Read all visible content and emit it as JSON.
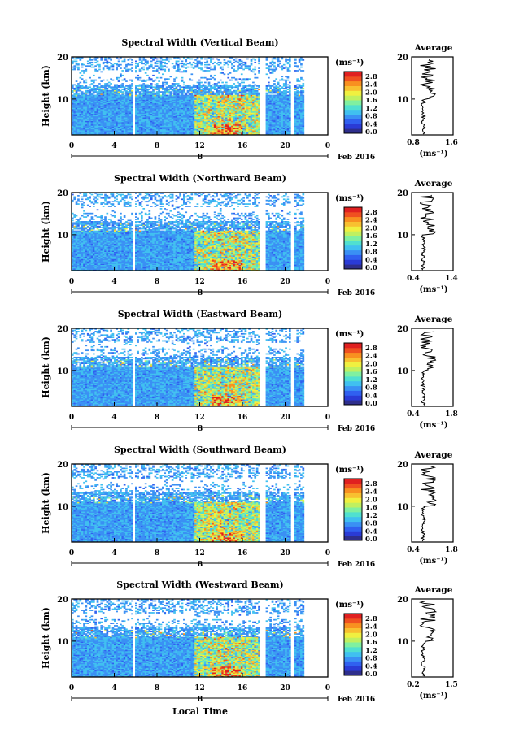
{
  "figure": {
    "xlabel": "Local Time",
    "date_label": "Feb 2016",
    "day_label": "8"
  },
  "colors": {
    "scale": [
      "#2e2e8c",
      "#2a3bd6",
      "#3060f0",
      "#3a90f4",
      "#40c0f0",
      "#50e0d0",
      "#80f0a0",
      "#c0f060",
      "#f0f040",
      "#f8c030",
      "#f89020",
      "#f05020",
      "#e02020"
    ],
    "profile_line": "#000000"
  },
  "chart_data": [
    {
      "type": "heatmap",
      "title": "Spectral Width (Vertical Beam)",
      "ylabel": "Height (km)",
      "colorbar": {
        "unit": "(ms⁻¹)",
        "ticks": [
          "2.8",
          "2.4",
          "2.0",
          "1.6",
          "1.2",
          "0.8",
          "0.4",
          "0.0"
        ],
        "range": [
          0,
          2.8
        ]
      },
      "x": {
        "range": [
          0,
          24
        ],
        "ticks": [
          "0",
          "4",
          "8",
          "12",
          "16",
          "20",
          "0"
        ]
      },
      "y": {
        "range": [
          1.5,
          20
        ],
        "ticks": [
          "20",
          "10"
        ]
      },
      "profile": {
        "title": "Average",
        "xunit": "(ms⁻¹)",
        "xlim": [
          0.8,
          1.6
        ],
        "xticks": [
          "0.8",
          "1.6"
        ],
        "yticks": [
          "20",
          "10"
        ]
      }
    },
    {
      "type": "heatmap",
      "title": "Spectral Width (Northward Beam)",
      "ylabel": "Height (km)",
      "colorbar": {
        "unit": "(ms⁻¹)",
        "ticks": [
          "2.8",
          "2.4",
          "2.0",
          "1.6",
          "1.2",
          "0.8",
          "0.4",
          "0.0"
        ],
        "range": [
          0,
          2.8
        ]
      },
      "x": {
        "range": [
          0,
          24
        ],
        "ticks": [
          "0",
          "4",
          "8",
          "12",
          "16",
          "20",
          "0"
        ]
      },
      "y": {
        "range": [
          1.5,
          20
        ],
        "ticks": [
          "20",
          "10"
        ]
      },
      "profile": {
        "title": "Average",
        "xunit": "(ms⁻¹)",
        "xlim": [
          0.4,
          1.4
        ],
        "xticks": [
          "0.4",
          "1.4"
        ],
        "yticks": [
          "20",
          "10"
        ]
      }
    },
    {
      "type": "heatmap",
      "title": "Spectral Width (Eastward Beam)",
      "ylabel": "Height (km)",
      "colorbar": {
        "unit": "(ms⁻¹)",
        "ticks": [
          "2.8",
          "2.4",
          "2.0",
          "1.6",
          "1.2",
          "0.8",
          "0.4",
          "0.0"
        ],
        "range": [
          0,
          2.8
        ]
      },
      "x": {
        "range": [
          0,
          24
        ],
        "ticks": [
          "0",
          "4",
          "8",
          "12",
          "16",
          "20",
          "0"
        ]
      },
      "y": {
        "range": [
          1.5,
          20
        ],
        "ticks": [
          "20",
          "10"
        ]
      },
      "profile": {
        "title": "Average",
        "xunit": "(ms⁻¹)",
        "xlim": [
          0.4,
          1.8
        ],
        "xticks": [
          "0.4",
          "1.8"
        ],
        "yticks": [
          "20",
          "10"
        ]
      }
    },
    {
      "type": "heatmap",
      "title": "Spectral Width (Southward Beam)",
      "ylabel": "Height (km)",
      "colorbar": {
        "unit": "(ms⁻¹)",
        "ticks": [
          "2.8",
          "2.4",
          "2.0",
          "1.6",
          "1.2",
          "0.8",
          "0.4",
          "0.0"
        ],
        "range": [
          0,
          2.8
        ]
      },
      "x": {
        "range": [
          0,
          24
        ],
        "ticks": [
          "0",
          "4",
          "8",
          "12",
          "16",
          "20",
          "0"
        ]
      },
      "y": {
        "range": [
          1.5,
          20
        ],
        "ticks": [
          "20",
          "10"
        ]
      },
      "profile": {
        "title": "Average",
        "xunit": "(ms⁻¹)",
        "xlim": [
          0.4,
          1.8
        ],
        "xticks": [
          "0.4",
          "1.8"
        ],
        "yticks": [
          "20",
          "10"
        ]
      }
    },
    {
      "type": "heatmap",
      "title": "Spectral Width (Westward Beam)",
      "ylabel": "Height (km)",
      "colorbar": {
        "unit": "(ms⁻¹)",
        "ticks": [
          "2.8",
          "2.4",
          "2.0",
          "1.6",
          "1.2",
          "0.8",
          "0.4",
          "0.0"
        ],
        "range": [
          0,
          2.8
        ]
      },
      "x": {
        "range": [
          0,
          24
        ],
        "ticks": [
          "0",
          "4",
          "8",
          "12",
          "16",
          "20",
          "0"
        ]
      },
      "y": {
        "range": [
          1.5,
          20
        ],
        "ticks": [
          "20",
          "10"
        ]
      },
      "profile": {
        "title": "Average",
        "xunit": "(ms⁻¹)",
        "xlim": [
          0.2,
          1.5
        ],
        "xticks": [
          "0.2",
          "1.5"
        ],
        "yticks": [
          "20",
          "10"
        ]
      }
    }
  ]
}
